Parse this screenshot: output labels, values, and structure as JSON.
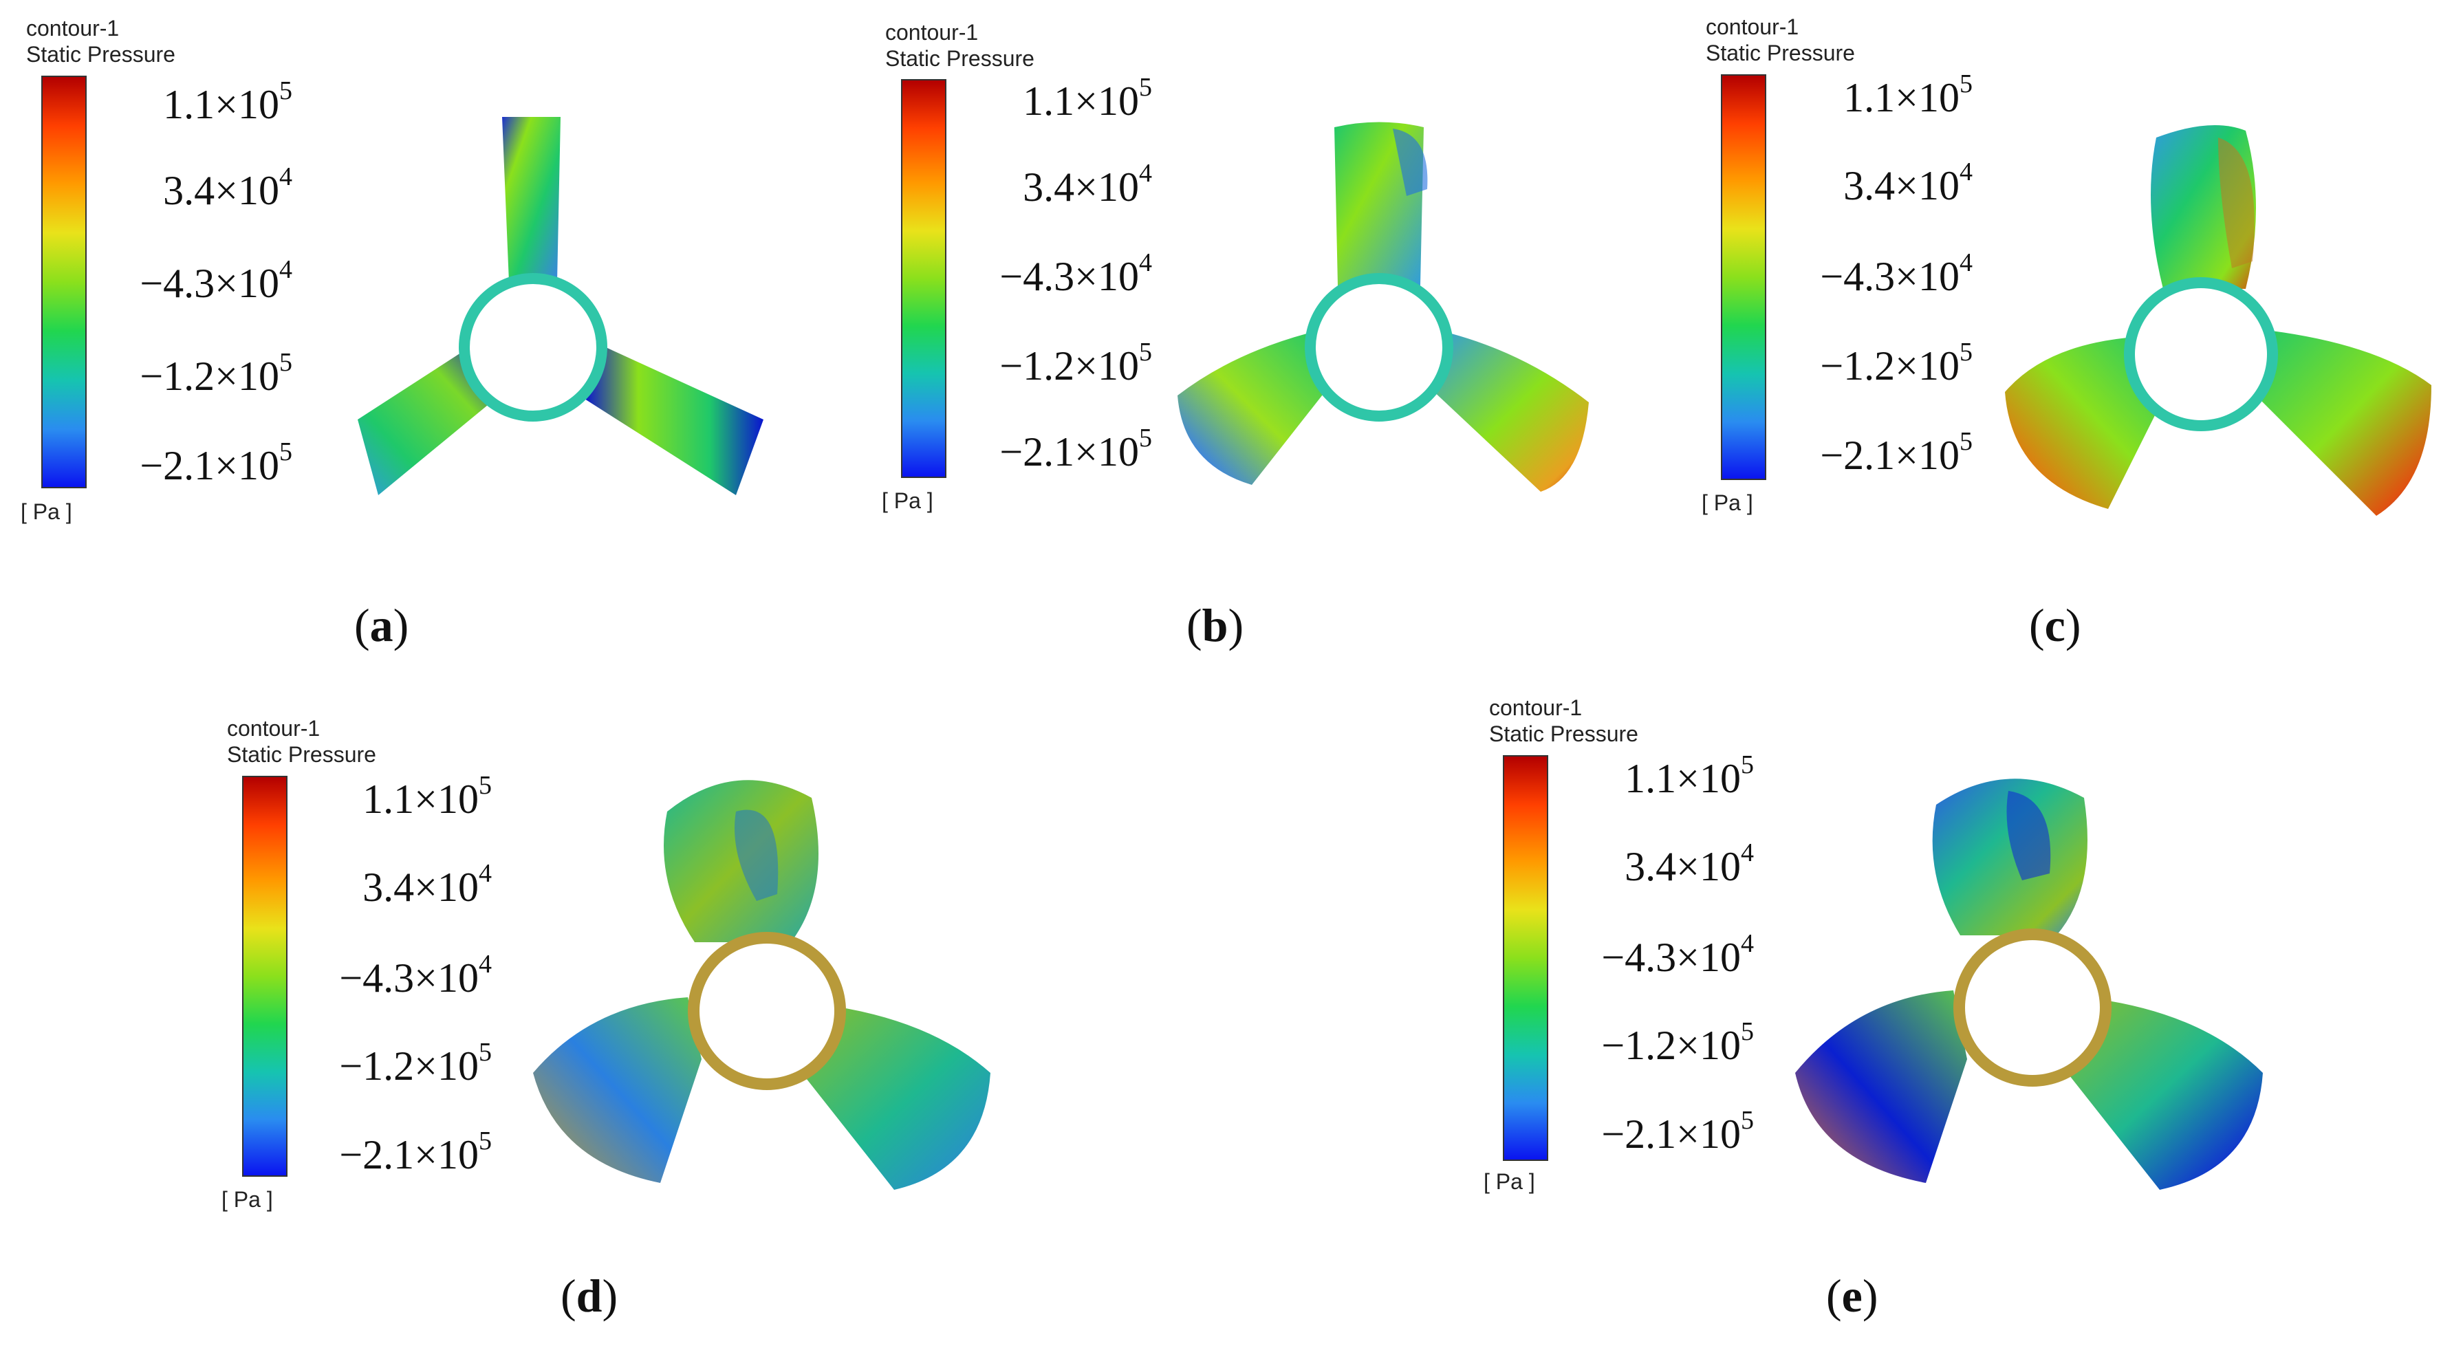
{
  "legend": {
    "title": "contour-1",
    "variable": "Static Pressure",
    "unit": "[ Pa ]",
    "ticks": [
      {
        "mant": "1.1×10",
        "exp": "5"
      },
      {
        "mant": "3.4×10",
        "exp": "4"
      },
      {
        "mant": "−4.3×10",
        "exp": "4"
      },
      {
        "mant": "−1.2×10",
        "exp": "5"
      },
      {
        "mant": "−2.1×10",
        "exp": "5"
      }
    ]
  },
  "captions": [
    "a",
    "b",
    "c",
    "d",
    "e"
  ],
  "colors": {
    "high": "#b30000",
    "mid": "#8be01c",
    "low": "#0a14f0",
    "hub": "#2fc6a8",
    "hub_warm": "#b89a3a"
  }
}
